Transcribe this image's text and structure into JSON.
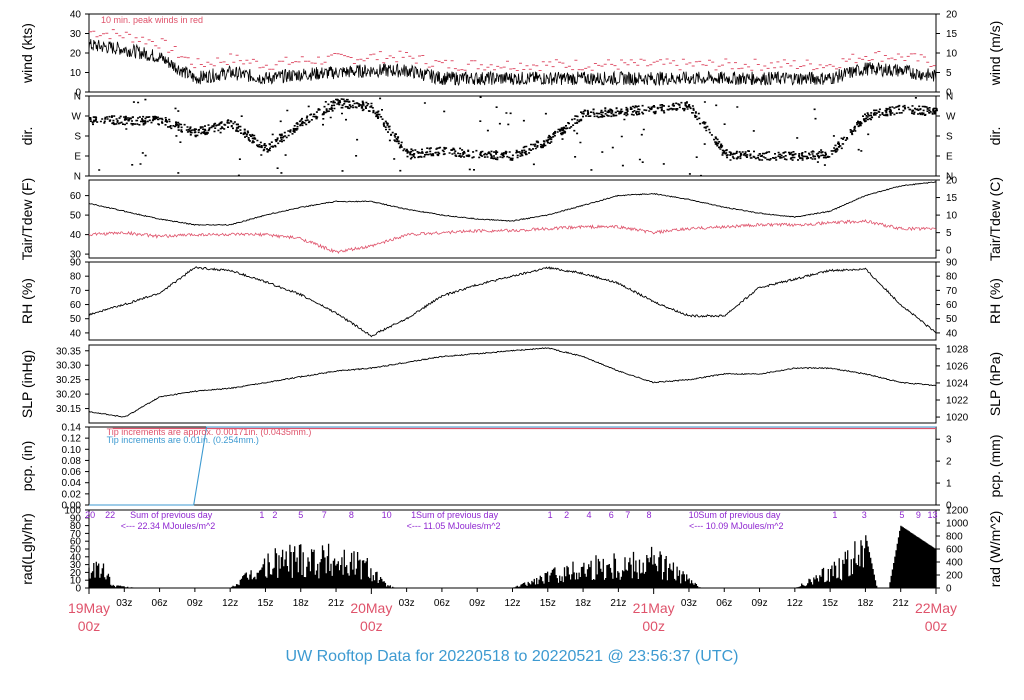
{
  "title": "UW Rooftop Data for 20220518  to  20220521 @ 23:56:37  (UTC)",
  "colors": {
    "red": "#df536b",
    "blue": "#3d9ad1",
    "purple": "#8f27d0",
    "black": "#000000"
  },
  "chart_data": [
    {
      "type": "line",
      "name": "wind",
      "ylabel_left": "wind (kts)",
      "ylabel_right": "wind (m/s)",
      "ylim": [
        0,
        40
      ],
      "left_ticks": [
        "0",
        "10",
        "20",
        "30",
        "40"
      ],
      "right_ticks": [
        "0",
        "5",
        "10",
        "15",
        "20"
      ],
      "annotation": "10 min. peak winds in red",
      "series_color": [
        "black",
        "red"
      ],
      "key_x": [
        0,
        3,
        6,
        9,
        12,
        15,
        18,
        21,
        24,
        27,
        30,
        33,
        36,
        39,
        42,
        45,
        48,
        51,
        54,
        57,
        60,
        63,
        66,
        69,
        72
      ],
      "key_y": [
        24,
        22,
        18,
        7,
        10,
        7,
        9,
        10,
        11,
        11,
        7,
        7,
        7,
        7,
        7,
        7,
        7,
        7,
        7,
        7,
        7,
        7,
        12,
        11,
        8
      ]
    },
    {
      "type": "scatter",
      "name": "dir",
      "ylabel_left": "dir.",
      "ylabel_right": "dir.",
      "left_ticks": [
        "N",
        "E",
        "S",
        "W",
        "N"
      ],
      "right_ticks": [
        "N",
        "E",
        "S",
        "W",
        "N"
      ],
      "key_x": [
        0,
        3,
        6,
        9,
        12,
        15,
        18,
        21,
        24,
        27,
        30,
        33,
        36,
        39,
        42,
        45,
        48,
        51,
        54,
        57,
        60,
        63,
        66,
        69,
        72
      ],
      "key_y": [
        250,
        250,
        250,
        195,
        240,
        120,
        240,
        330,
        310,
        100,
        110,
        100,
        90,
        160,
        280,
        290,
        300,
        315,
        100,
        90,
        90,
        100,
        270,
        300,
        290
      ]
    },
    {
      "type": "line",
      "name": "temp",
      "ylabel_left": "Tair/Tdew (F)",
      "ylabel_right": "Tair/Tdew (C)",
      "ylim": [
        28,
        68
      ],
      "left_ticks": [
        "30",
        "40",
        "50",
        "60"
      ],
      "right_ticks": [
        "0",
        "5",
        "10",
        "15",
        "20"
      ],
      "series": [
        {
          "color": "black",
          "key_x": [
            0,
            3,
            6,
            9,
            12,
            15,
            18,
            21,
            24,
            27,
            30,
            33,
            36,
            39,
            42,
            45,
            48,
            51,
            54,
            57,
            60,
            63,
            66,
            69,
            72
          ],
          "key_y": [
            56,
            52,
            48,
            45,
            45,
            50,
            54,
            57,
            57,
            53,
            50,
            48,
            47,
            50,
            55,
            60,
            61,
            58,
            54,
            51,
            49,
            52,
            60,
            65,
            67
          ]
        },
        {
          "color": "red",
          "key_x": [
            0,
            3,
            6,
            9,
            12,
            15,
            18,
            21,
            24,
            27,
            30,
            33,
            36,
            39,
            42,
            45,
            48,
            51,
            54,
            57,
            60,
            63,
            66,
            69,
            72
          ],
          "key_y": [
            40,
            41,
            39,
            40,
            40,
            40,
            38,
            31,
            34,
            40,
            41,
            42,
            42,
            43,
            44,
            44,
            41,
            43,
            44,
            45,
            45,
            46,
            47,
            43,
            43
          ]
        }
      ]
    },
    {
      "type": "line",
      "name": "rh",
      "ylabel_left": "RH (%)",
      "ylabel_right": "RH (%)",
      "ylim": [
        35,
        90
      ],
      "left_ticks": [
        "40",
        "50",
        "60",
        "70",
        "80",
        "90"
      ],
      "right_ticks": [
        "40",
        "50",
        "60",
        "70",
        "80",
        "90"
      ],
      "key_x": [
        0,
        3,
        6,
        9,
        12,
        15,
        18,
        21,
        24,
        27,
        30,
        33,
        36,
        39,
        42,
        45,
        48,
        51,
        54,
        57,
        60,
        63,
        66,
        69,
        72
      ],
      "key_y": [
        53,
        60,
        68,
        86,
        84,
        76,
        67,
        54,
        38,
        50,
        66,
        74,
        80,
        86,
        82,
        75,
        62,
        52,
        52,
        72,
        78,
        84,
        85,
        60,
        40
      ]
    },
    {
      "type": "line",
      "name": "slp",
      "ylabel_left": "SLP (inHg)",
      "ylabel_right": "SLP (hPa)",
      "ylim": [
        30.1,
        30.37
      ],
      "left_ticks": [
        "30.15",
        "30.20",
        "30.25",
        "30.30",
        "30.35"
      ],
      "right_ticks": [
        "1020",
        "1022",
        "1024",
        "1026",
        "1028"
      ],
      "key_x": [
        0,
        3,
        6,
        9,
        12,
        15,
        18,
        21,
        24,
        27,
        30,
        33,
        36,
        39,
        42,
        45,
        48,
        51,
        54,
        57,
        60,
        63,
        66,
        69,
        72
      ],
      "key_y": [
        30.14,
        30.12,
        30.19,
        30.21,
        30.22,
        30.24,
        30.26,
        30.28,
        30.29,
        30.31,
        30.33,
        30.34,
        30.35,
        30.36,
        30.33,
        30.28,
        30.24,
        30.25,
        30.27,
        30.27,
        30.29,
        30.29,
        30.27,
        30.24,
        30.23
      ]
    },
    {
      "type": "line",
      "name": "pcp",
      "ylabel_left": "pcp. (in)",
      "ylabel_right": "pcp. (mm)",
      "ylim": [
        0,
        0.14
      ],
      "left_ticks": [
        "0.00",
        "0.02",
        "0.04",
        "0.06",
        "0.08",
        "0.10",
        "0.12",
        "0.14"
      ],
      "right_ticks": [
        "0",
        "1",
        "2",
        "3"
      ],
      "annotation_red": "Tip increments are approx. 0.00171in. (0.0435mm.)",
      "annotation_blue": "Tip increments are 0.01in. (0.254mm.)",
      "key_x": [
        0,
        8.9,
        10,
        72
      ],
      "key_y": [
        0,
        0,
        0.14,
        0.14
      ]
    },
    {
      "type": "area",
      "name": "rad",
      "ylabel_left": "rad(Lgly/hr)",
      "ylabel_right": "rad (W/m^2)",
      "ylim": [
        0,
        100
      ],
      "left_ticks": [
        "0",
        "10",
        "20",
        "30",
        "40",
        "50",
        "60",
        "70",
        "80",
        "90",
        "100"
      ],
      "right_ticks": [
        "0",
        "200",
        "400",
        "600",
        "800",
        "1000",
        "1200"
      ],
      "sums": [
        {
          "head": "Sum of previous day",
          "value": "<--- 22.34 MJoules/m^2"
        },
        {
          "head": "Sum of previous day",
          "value": "<--- 11.05 MJoules/m^2"
        },
        {
          "head": "Sum of previous day",
          "value": "<--- 10.09 MJoules/m^2"
        }
      ],
      "hour_marks": [
        {
          "t": 0.1,
          "label": "20"
        },
        {
          "t": 1.8,
          "label": "22"
        },
        {
          "t": 14.7,
          "label": "1"
        },
        {
          "t": 15.8,
          "label": "2"
        },
        {
          "t": 18.0,
          "label": "5"
        },
        {
          "t": 20.0,
          "label": "7"
        },
        {
          "t": 22.3,
          "label": "8"
        },
        {
          "t": 25.3,
          "label": "10"
        },
        {
          "t": 27.6,
          "label": "1"
        },
        {
          "t": 39.2,
          "label": "1"
        },
        {
          "t": 40.6,
          "label": "2"
        },
        {
          "t": 42.5,
          "label": "4"
        },
        {
          "t": 44.4,
          "label": "6"
        },
        {
          "t": 45.8,
          "label": "7"
        },
        {
          "t": 47.6,
          "label": "8"
        },
        {
          "t": 51.4,
          "label": "10"
        },
        {
          "t": 63.4,
          "label": "1"
        },
        {
          "t": 65.9,
          "label": "3"
        },
        {
          "t": 69.1,
          "label": "5"
        },
        {
          "t": 70.5,
          "label": "9"
        },
        {
          "t": 71.7,
          "label": "13"
        }
      ],
      "key_x": [
        0,
        1.5,
        2,
        4,
        12,
        14,
        16,
        18,
        20,
        22,
        24,
        25,
        26,
        36,
        40,
        44,
        46,
        48,
        50,
        52,
        60,
        62,
        64,
        66,
        67,
        68,
        69,
        70,
        71,
        72
      ],
      "key_y": [
        45,
        30,
        5,
        0,
        0,
        30,
        55,
        65,
        60,
        55,
        40,
        10,
        0,
        0,
        30,
        50,
        50,
        60,
        30,
        0,
        0,
        20,
        50,
        70,
        0,
        0,
        80,
        70,
        60,
        50
      ]
    }
  ],
  "xaxis": {
    "ticks": [
      {
        "t": 3,
        "label": "03z"
      },
      {
        "t": 6,
        "label": "06z"
      },
      {
        "t": 9,
        "label": "09z"
      },
      {
        "t": 12,
        "label": "12z"
      },
      {
        "t": 15,
        "label": "15z"
      },
      {
        "t": 18,
        "label": "18z"
      },
      {
        "t": 21,
        "label": "21z"
      },
      {
        "t": 27,
        "label": "03z"
      },
      {
        "t": 30,
        "label": "06z"
      },
      {
        "t": 33,
        "label": "09z"
      },
      {
        "t": 36,
        "label": "12z"
      },
      {
        "t": 39,
        "label": "15z"
      },
      {
        "t": 42,
        "label": "18z"
      },
      {
        "t": 45,
        "label": "21z"
      },
      {
        "t": 51,
        "label": "03z"
      },
      {
        "t": 54,
        "label": "06z"
      },
      {
        "t": 57,
        "label": "09z"
      },
      {
        "t": 60,
        "label": "12z"
      },
      {
        "t": 63,
        "label": "15z"
      },
      {
        "t": 66,
        "label": "18z"
      },
      {
        "t": 69,
        "label": "21z"
      }
    ],
    "days": [
      {
        "t": 0,
        "label": "19May",
        "sub": "00z"
      },
      {
        "t": 24,
        "label": "20May",
        "sub": "00z"
      },
      {
        "t": 48,
        "label": "21May",
        "sub": "00z"
      },
      {
        "t": 72,
        "label": "22May",
        "sub": "00z"
      }
    ],
    "range": [
      0,
      72
    ]
  }
}
